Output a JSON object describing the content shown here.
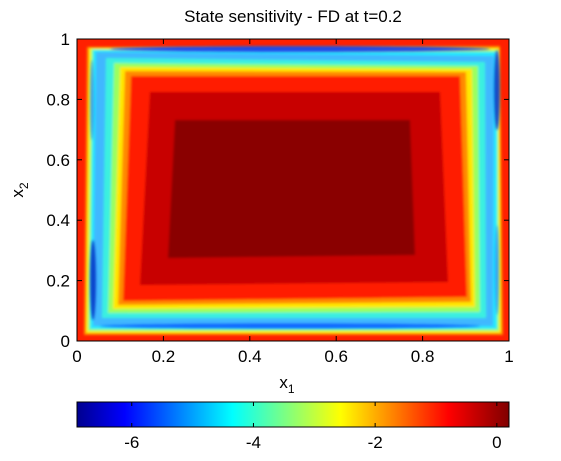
{
  "chart_data": {
    "type": "heatmap",
    "title": "State sensitivity - FD at t=0.2",
    "xlabel": "x",
    "xlabel_sub": "1",
    "ylabel": "x",
    "ylabel_sub": "2",
    "xlim": [
      0,
      1
    ],
    "ylim": [
      0,
      1
    ],
    "x_ticks": [
      0,
      0.2,
      0.4,
      0.6,
      0.8,
      1
    ],
    "x_tick_labels": [
      "0",
      "0.2",
      "0.4",
      "0.6",
      "0.8",
      "1"
    ],
    "y_ticks": [
      0,
      0.2,
      0.4,
      0.6,
      0.8,
      1
    ],
    "y_tick_labels": [
      "0",
      "0.2",
      "0.4",
      "0.6",
      "0.8",
      "1"
    ],
    "colorbar": {
      "orientation": "horizontal",
      "placement": "bottom",
      "colormap": "jet",
      "range": [
        -6.9,
        0.2
      ],
      "ticks": [
        -6,
        -4,
        -2,
        0
      ],
      "tick_labels": [
        "-6",
        "-4",
        "-2",
        "0"
      ]
    },
    "field": {
      "description_values": {
        "interior_max": 0.2,
        "inner_plateau": -0.3,
        "band_min": -6.9,
        "boundary_value": -1.5
      },
      "band_corners": [
        [
          0.05,
          0.93
        ],
        [
          0.96,
          0.97
        ],
        [
          0.97,
          0.05
        ],
        [
          0.04,
          0.04
        ]
      ]
    },
    "grid": false
  }
}
